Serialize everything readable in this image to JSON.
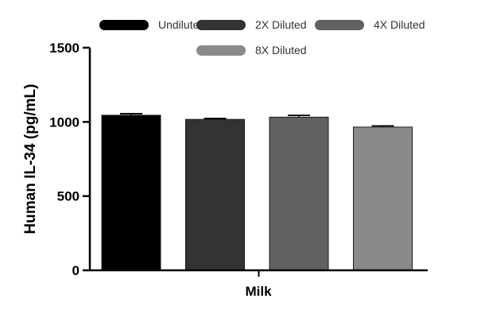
{
  "chart_data": {
    "type": "bar",
    "ylabel": "Human IL-34 (pg/mL)",
    "xlabel": "Milk",
    "ylim": [
      0,
      1500
    ],
    "yticks": [
      0,
      500,
      1000,
      1500
    ],
    "grid": false,
    "legend_position": "top",
    "series": [
      {
        "name": "Undiluted",
        "value": 1045,
        "error": 10,
        "color": "#000000"
      },
      {
        "name": "2X Diluted",
        "value": 1017,
        "error": 6,
        "color": "#333333"
      },
      {
        "name": "4X Diluted",
        "value": 1032,
        "error": 12,
        "color": "#616161"
      },
      {
        "name": "8X Diluted",
        "value": 965,
        "error": 8,
        "color": "#8a8a8a"
      }
    ]
  }
}
